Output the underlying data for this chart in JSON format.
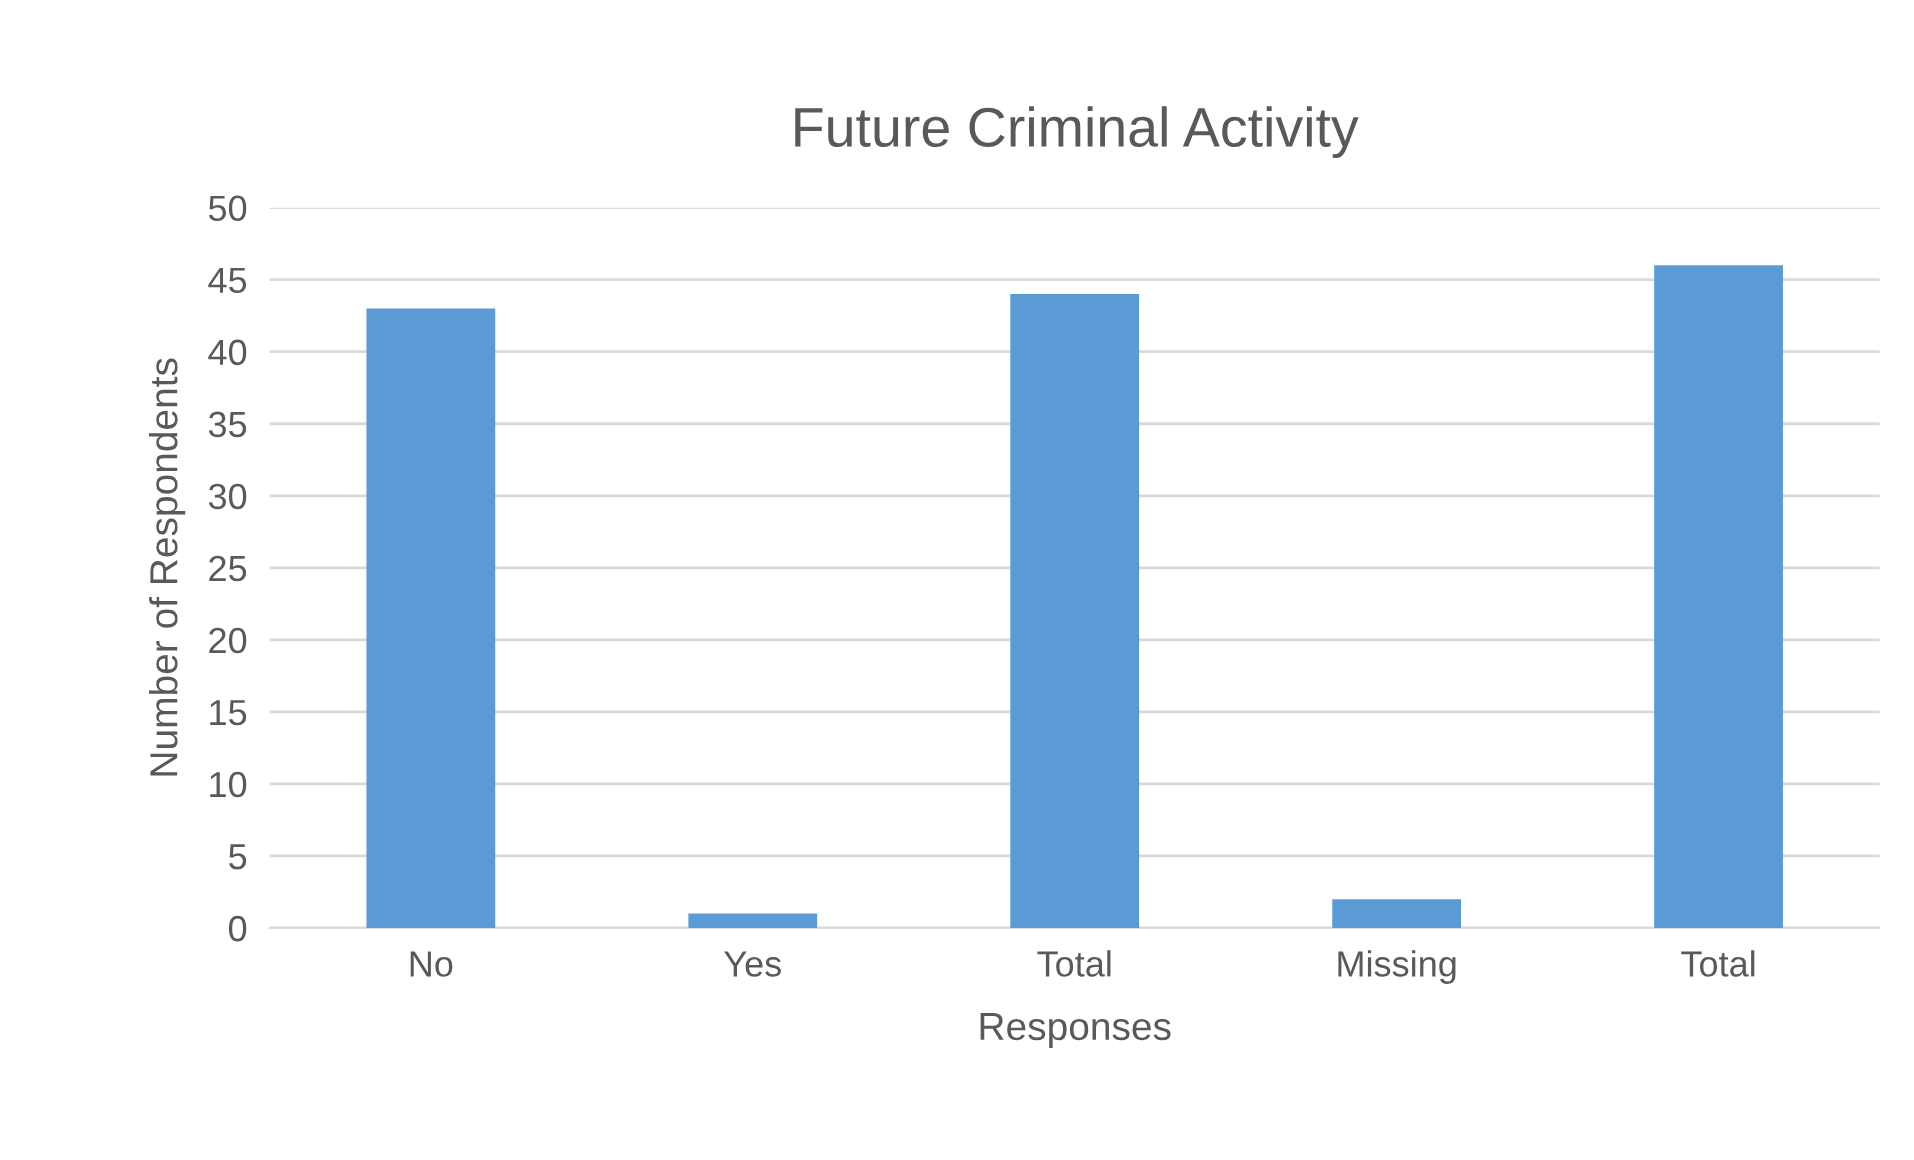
{
  "chart_data": {
    "type": "bar",
    "title": "Future Criminal Activity",
    "xlabel": "Responses",
    "ylabel": "Number of Respondents",
    "categories": [
      "No",
      "Yes",
      "Total",
      "Missing",
      "Total"
    ],
    "values": [
      43,
      1,
      44,
      2,
      46
    ],
    "color": "#5b9bd5",
    "ylim": [
      0,
      50
    ],
    "yticks": [
      0,
      5,
      10,
      15,
      20,
      25,
      30,
      35,
      40,
      45,
      50
    ],
    "grid": "y",
    "legend": false
  }
}
